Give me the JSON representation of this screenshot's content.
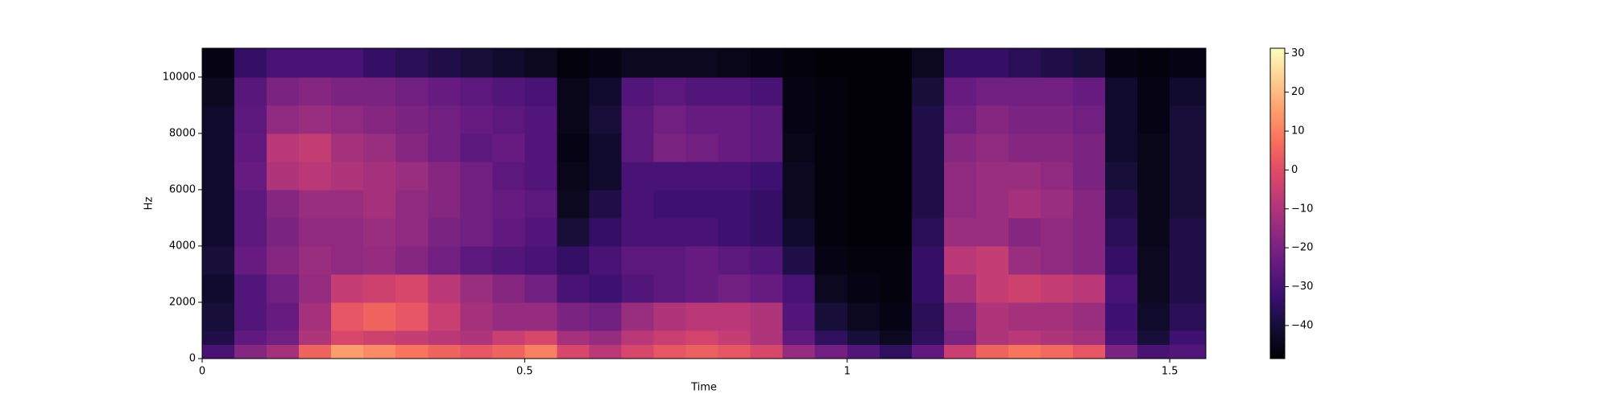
{
  "chart_data": {
    "type": "spectrogram",
    "xlabel": "Time",
    "ylabel": "Hz",
    "colormap": "magma",
    "xlim": [
      0,
      1.556
    ],
    "ylim": [
      0,
      11025
    ],
    "xticks": [
      0,
      0.5,
      1,
      1.5
    ],
    "yticks": [
      0,
      2000,
      4000,
      6000,
      8000,
      10000
    ],
    "clim": [
      -48.5,
      31.3
    ],
    "cticks": [
      30,
      20,
      10,
      0,
      {
        "value": -10,
        "label": "−10"
      },
      {
        "value": -20,
        "label": "−20"
      },
      {
        "value": -30,
        "label": "−30"
      },
      {
        "value": -40,
        "label": "−40"
      }
    ],
    "x_edges": [
      0,
      0.05,
      0.1,
      0.15,
      0.2,
      0.25,
      0.3,
      0.35,
      0.4,
      0.45,
      0.5,
      0.55,
      0.6,
      0.65,
      0.7,
      0.75,
      0.8,
      0.85,
      0.9,
      0.95,
      1.0,
      1.05,
      1.1,
      1.15,
      1.2,
      1.25,
      1.3,
      1.35,
      1.4,
      1.45,
      1.5,
      1.556
    ],
    "y_edges": [
      0,
      500,
      1000,
      2000,
      3000,
      4000,
      5000,
      6000,
      7000,
      8000,
      9000,
      10000,
      11025
    ],
    "values": [
      [
        -30,
        -38,
        -40,
        -42,
        -40,
        -42,
        -42,
        -42,
        -42,
        -42,
        -44,
        -46
      ],
      [
        -18,
        -25,
        -28,
        -28,
        -24,
        -26,
        -26,
        -24,
        -25,
        -26,
        -27,
        -34
      ],
      [
        -12,
        -22,
        -24,
        -22,
        -18,
        -20,
        -18,
        -10,
        -8,
        -16,
        -20,
        -30
      ],
      [
        5,
        -10,
        -12,
        -15,
        -14,
        -16,
        -14,
        -8,
        -6,
        -14,
        -18,
        -30
      ],
      [
        15,
        -2,
        2,
        -6,
        -16,
        -16,
        -14,
        -10,
        -12,
        -16,
        -20,
        -30
      ],
      [
        12,
        -4,
        5,
        -4,
        -15,
        -14,
        -12,
        -12,
        -14,
        -18,
        -20,
        -34
      ],
      [
        8,
        -6,
        2,
        -2,
        -18,
        -16,
        -16,
        -14,
        -18,
        -20,
        -22,
        -36
      ],
      [
        5,
        -8,
        -5,
        -8,
        -22,
        -20,
        -18,
        -18,
        -22,
        -22,
        -24,
        -38
      ],
      [
        2,
        -10,
        -12,
        -14,
        -26,
        -22,
        -22,
        -22,
        -26,
        -24,
        -26,
        -40
      ],
      [
        5,
        -5,
        -15,
        -18,
        -28,
        -25,
        -24,
        -26,
        -24,
        -26,
        -28,
        -42
      ],
      [
        10,
        -2,
        -15,
        -22,
        -30,
        -28,
        -26,
        -28,
        -28,
        -28,
        -30,
        -44
      ],
      [
        -2,
        -12,
        -20,
        -30,
        -34,
        -40,
        -44,
        -45,
        -46,
        -45,
        -45,
        -47
      ],
      [
        -8,
        -15,
        -22,
        -32,
        -30,
        -34,
        -38,
        -42,
        -42,
        -40,
        -42,
        -46
      ],
      [
        -2,
        -8,
        -14,
        -28,
        -26,
        -30,
        -30,
        -30,
        -26,
        -26,
        -28,
        -44
      ],
      [
        2,
        -5,
        -10,
        -26,
        -26,
        -30,
        -32,
        -30,
        -20,
        -22,
        -26,
        -44
      ],
      [
        4,
        -3,
        -8,
        -24,
        -24,
        -30,
        -32,
        -30,
        -22,
        -24,
        -28,
        -44
      ],
      [
        2,
        -6,
        -8,
        -22,
        -26,
        -32,
        -32,
        -30,
        -24,
        -24,
        -28,
        -45
      ],
      [
        -2,
        -10,
        -10,
        -24,
        -28,
        -34,
        -34,
        -32,
        -26,
        -26,
        -30,
        -46
      ],
      [
        -15,
        -25,
        -28,
        -30,
        -38,
        -42,
        -44,
        -44,
        -45,
        -46,
        -46,
        -47
      ],
      [
        -22,
        -35,
        -40,
        -44,
        -46,
        -47,
        -47,
        -47,
        -47,
        -47,
        -47,
        -48
      ],
      [
        -28,
        -40,
        -44,
        -46,
        -47,
        -48,
        -48,
        -48,
        -48,
        -48,
        -48,
        -48
      ],
      [
        -35,
        -44,
        -46,
        -47,
        -47,
        -48,
        -48,
        -48,
        -48,
        -48,
        -48,
        -48
      ],
      [
        -25,
        -35,
        -36,
        -34,
        -34,
        -36,
        -38,
        -38,
        -38,
        -38,
        -40,
        -44
      ],
      [
        -5,
        -20,
        -18,
        -12,
        -8,
        -14,
        -16,
        -16,
        -18,
        -22,
        -24,
        -34
      ],
      [
        5,
        -10,
        -10,
        -6,
        -6,
        -14,
        -14,
        -14,
        -16,
        -18,
        -22,
        -34
      ],
      [
        8,
        -8,
        -12,
        -4,
        -14,
        -18,
        -12,
        -14,
        -18,
        -20,
        -22,
        -36
      ],
      [
        6,
        -10,
        -12,
        -6,
        -16,
        -16,
        -14,
        -16,
        -18,
        -20,
        -22,
        -38
      ],
      [
        2,
        -12,
        -14,
        -8,
        -18,
        -18,
        -18,
        -20,
        -20,
        -22,
        -24,
        -40
      ],
      [
        -20,
        -30,
        -32,
        -30,
        -34,
        -36,
        -38,
        -40,
        -42,
        -42,
        -42,
        -46
      ],
      [
        -30,
        -40,
        -42,
        -44,
        -44,
        -45,
        -45,
        -45,
        -45,
        -46,
        -46,
        -47
      ],
      [
        -28,
        -32,
        -36,
        -38,
        -38,
        -38,
        -40,
        -40,
        -40,
        -40,
        -42,
        -46
      ]
    ]
  }
}
